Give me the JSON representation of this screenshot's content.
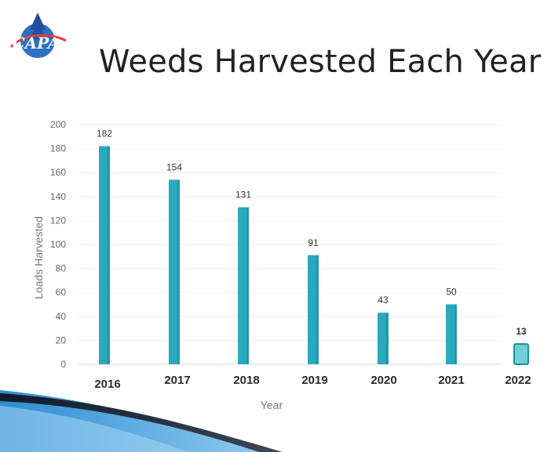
{
  "slide": {
    "title": "Weeds Harvested Each Year",
    "logo_text": "CAPA",
    "logo_icon": "capa-logo-icon"
  },
  "colors": {
    "bar": "#2aa9bd",
    "bar_dark": "#1c8e9f",
    "highlight_bar_fill": "#6fd0dc",
    "swoosh_dark": "#1d2b3c",
    "swoosh_blue": "#2f8fd1"
  },
  "chart_data": {
    "type": "bar",
    "categories": [
      "2016",
      "2017",
      "2018",
      "2019",
      "2020",
      "2021",
      "2022"
    ],
    "values": [
      182,
      154,
      131,
      91,
      43,
      50,
      13
    ],
    "data_labels": [
      "182",
      "154",
      "131",
      "91",
      "43",
      "50",
      "13"
    ],
    "title": "",
    "xlabel": "Year",
    "ylabel": "Loads Harvested",
    "ylim": [
      0,
      200
    ],
    "yticks": [
      0,
      20,
      40,
      60,
      80,
      100,
      120,
      140,
      160,
      180,
      200
    ],
    "grid": true,
    "legend": "none"
  }
}
